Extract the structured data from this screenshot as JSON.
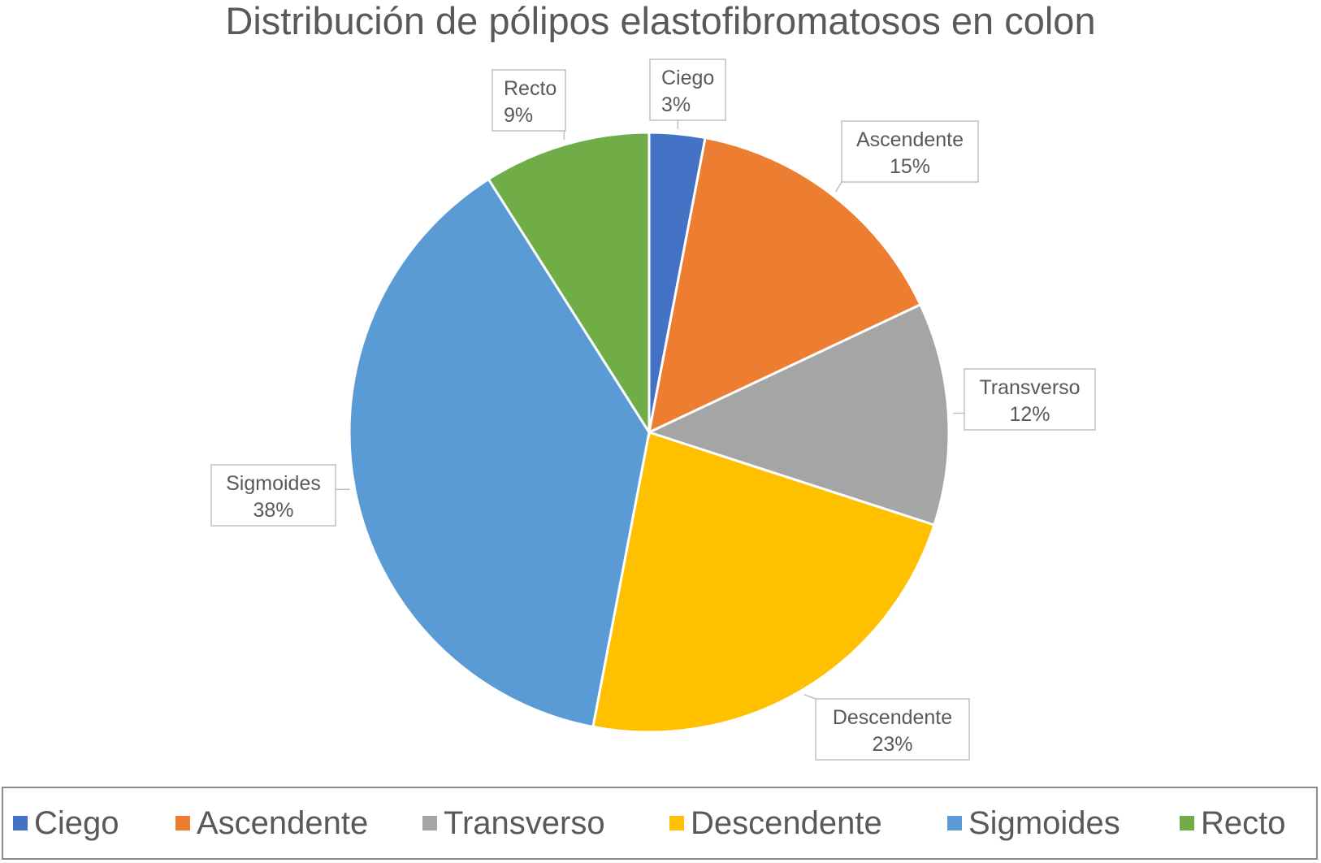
{
  "chart_data": {
    "type": "pie",
    "title": "Distribución de pólipos elastofibromatosos en colon",
    "slices": [
      {
        "name": "Ciego",
        "percent": 3,
        "value_label": "3%",
        "color": "#4472C4"
      },
      {
        "name": "Ascendente",
        "percent": 15,
        "value_label": "15%",
        "color": "#ED7D31"
      },
      {
        "name": "Transverso",
        "percent": 12,
        "value_label": "12%",
        "color": "#A5A5A5"
      },
      {
        "name": "Descendente",
        "percent": 23,
        "value_label": "23%",
        "color": "#FFC000"
      },
      {
        "name": "Sigmoides",
        "percent": 38,
        "value_label": "38%",
        "color": "#5B9BD5"
      },
      {
        "name": "Recto",
        "percent": 9,
        "value_label": "9%",
        "color": "#70AD47"
      }
    ],
    "legend_placement": "bottom"
  }
}
